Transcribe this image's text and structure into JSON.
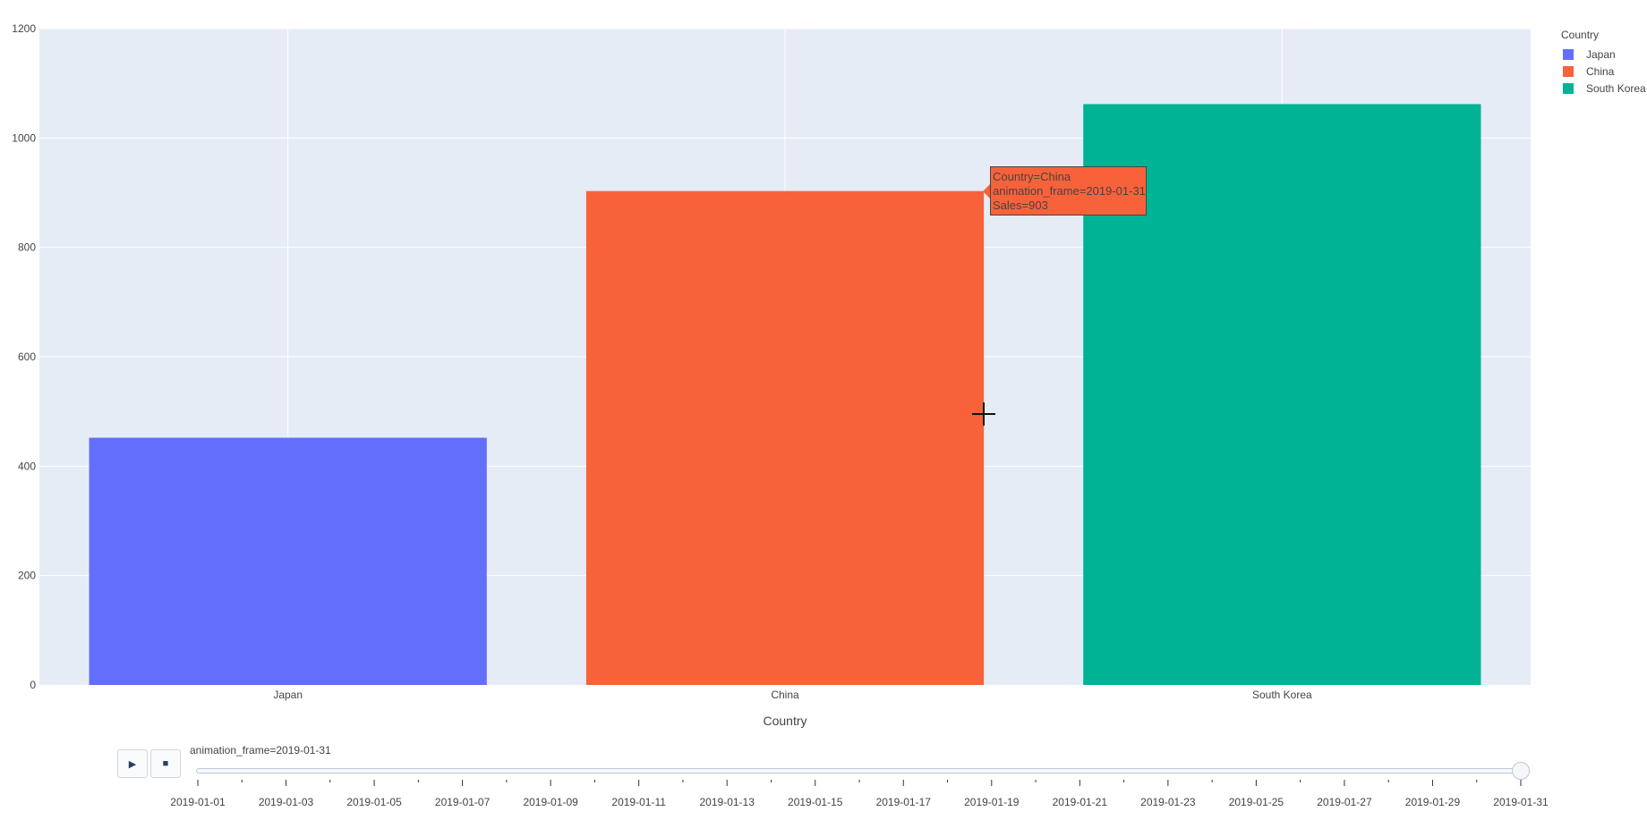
{
  "chart_data": {
    "type": "bar",
    "categories": [
      "Japan",
      "China",
      "South Korea"
    ],
    "values": [
      452,
      903,
      1062
    ],
    "colors": [
      "#636efa",
      "#f8623a",
      "#00b395"
    ],
    "xlabel": "Country",
    "ylabel": "",
    "ylim": [
      0,
      1200
    ],
    "y_ticks": [
      "0",
      "200",
      "400",
      "600",
      "800",
      "1000",
      "1200"
    ],
    "grid": true,
    "legend": {
      "title": "Country",
      "placement": "top-right",
      "items": [
        "Japan",
        "China",
        "South Korea"
      ]
    }
  },
  "hover": {
    "lines": [
      "Country=China",
      "animation_frame=2019-01-31",
      "Sales=903"
    ],
    "color": "#f8623a"
  },
  "animation": {
    "current_label": "animation_frame=2019-01-31",
    "play_icon": "▶",
    "stop_icon": "■",
    "progress": 1.0,
    "frame_labels": [
      "2019-01-01",
      "2019-01-03",
      "2019-01-05",
      "2019-01-07",
      "2019-01-09",
      "2019-01-11",
      "2019-01-13",
      "2019-01-15",
      "2019-01-17",
      "2019-01-19",
      "2019-01-21",
      "2019-01-23",
      "2019-01-25",
      "2019-01-27",
      "2019-01-29",
      "2019-01-31"
    ],
    "frame_count": 31
  }
}
